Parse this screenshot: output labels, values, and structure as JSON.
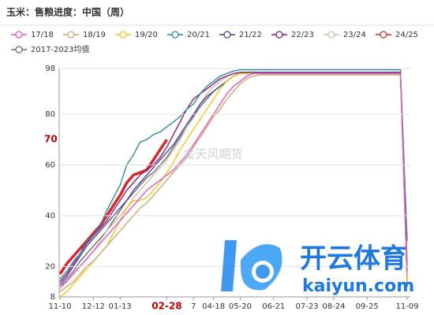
{
  "chart_data": {
    "type": "line",
    "title": "玉米：售粮进度：中国（周）",
    "categories": [
      "11-10",
      null,
      null,
      null,
      null,
      "12-12",
      null,
      null,
      null,
      "01-13",
      null,
      null,
      null,
      null,
      null,
      null,
      "02-28",
      null,
      null,
      null,
      "7",
      null,
      null,
      "04-18",
      null,
      null,
      null,
      "05-20",
      null,
      null,
      null,
      null,
      "06-21",
      null,
      null,
      null,
      null,
      "07-23",
      null,
      null,
      null,
      "08-24",
      null,
      null,
      null,
      null,
      "09-25",
      null,
      null,
      null,
      null,
      null,
      "11-09"
    ],
    "ylim": [
      8,
      98
    ],
    "yticks": [
      8,
      20,
      40,
      60,
      80,
      98
    ],
    "grid": true,
    "annotation": {
      "value": 70,
      "x_index": 16,
      "color": "#c00000"
    },
    "watermarks": {
      "text": "金天风期货",
      "logo_text": "开云体育",
      "logo_url": "kaiyun.com"
    },
    "series": [
      {
        "name": "17/18",
        "color": "#e754c4",
        "values": [
          12,
          14,
          17,
          20,
          23,
          26,
          29,
          32,
          35,
          38,
          41,
          44,
          47,
          50,
          52,
          54,
          56,
          58,
          61,
          64,
          68,
          72,
          76,
          80,
          84,
          88,
          91,
          93,
          95,
          96,
          96,
          96,
          96,
          96,
          96,
          96,
          96,
          96,
          96,
          96,
          96,
          96,
          96,
          96,
          96,
          96,
          96,
          96,
          96,
          96,
          96,
          96,
          18
        ]
      },
      {
        "name": "18/19",
        "color": "#c8a96e",
        "values": [
          10,
          12,
          14,
          17,
          20,
          22,
          25,
          28,
          31,
          34,
          37,
          40,
          43,
          45,
          48,
          51,
          54,
          57,
          60,
          63,
          67,
          71,
          75,
          79,
          82,
          86,
          89,
          92,
          94,
          95,
          95.5,
          95.5,
          95.5,
          95.5,
          95.5,
          95.5,
          95.5,
          95.5,
          95.5,
          95.5,
          95.5,
          95.5,
          95.5,
          95.5,
          95.5,
          95.5,
          95.5,
          95.5,
          95.5,
          95.5,
          95.5,
          95.5,
          16
        ]
      },
      {
        "name": "19/20",
        "color": "#f5c518",
        "values": [
          8,
          10,
          13,
          16,
          19,
          22,
          25,
          28,
          33,
          38,
          43,
          46,
          46,
          47,
          50,
          53,
          57,
          61,
          66,
          70,
          74,
          78,
          82,
          86,
          90,
          93,
          95,
          96,
          96,
          96,
          96,
          96,
          96,
          96,
          96,
          96,
          96,
          96,
          96,
          96,
          96,
          96,
          96,
          96,
          96,
          96,
          96,
          96,
          96,
          96,
          96,
          96,
          14
        ]
      },
      {
        "name": "20/21",
        "color": "#2e8b98",
        "values": [
          15,
          18,
          22,
          25,
          30,
          32,
          36,
          42,
          47,
          52,
          60,
          64,
          69,
          70,
          72,
          73,
          75,
          77,
          79,
          82,
          84,
          88,
          91,
          93,
          95,
          96,
          97,
          97.5,
          97.5,
          97.5,
          97.5,
          97.5,
          97.5,
          97.5,
          97.5,
          97.5,
          97.5,
          97.5,
          97.5,
          97.5,
          97.5,
          97.5,
          97.5,
          97.5,
          97.5,
          97.5,
          97.5,
          97.5,
          97.5,
          97.5,
          97.5,
          97.5,
          30
        ]
      },
      {
        "name": "21/22",
        "color": "#4b3f9e",
        "values": [
          13,
          16,
          20,
          24,
          28,
          31,
          34,
          37,
          40,
          43,
          46,
          50,
          53,
          56,
          59,
          62,
          65,
          68,
          72,
          76,
          80,
          84,
          87,
          89,
          91,
          93,
          95,
          96,
          96.5,
          96.5,
          96.5,
          96.5,
          96.5,
          96.5,
          96.5,
          96.5,
          96.5,
          96.5,
          96.5,
          96.5,
          96.5,
          96.5,
          96.5,
          96.5,
          96.5,
          96.5,
          96.5,
          96.5,
          96.5,
          96.5,
          96.5,
          96.5,
          12
        ]
      },
      {
        "name": "22/23",
        "color": "#8b1a7a",
        "values": [
          14,
          17,
          21,
          25,
          29,
          32,
          35,
          38,
          42,
          46,
          50,
          53,
          56,
          58,
          60,
          63,
          67,
          72,
          77,
          82,
          86,
          88,
          90,
          92,
          94,
          95,
          96,
          96.5,
          96.5,
          96.5,
          96.5,
          96.5,
          96.5,
          96.5,
          96.5,
          96.5,
          96.5,
          96.5,
          96.5,
          96.5,
          96.5,
          96.5,
          96.5,
          96.5,
          96.5,
          96.5,
          96.5,
          96.5,
          96.5,
          96.5,
          96.5,
          96.5,
          15
        ]
      },
      {
        "name": "23/24",
        "color": "#c9c2a3",
        "values": [
          11,
          14,
          17,
          20,
          23,
          26,
          30,
          34,
          37,
          40,
          43,
          47,
          50,
          53,
          56,
          59,
          62,
          66,
          70,
          75,
          80,
          84,
          88,
          91,
          93,
          95,
          96,
          96,
          96,
          96,
          96,
          96,
          96,
          96,
          96,
          96,
          96,
          96,
          96,
          96,
          96,
          96,
          96,
          96,
          96,
          96,
          96,
          96,
          96,
          96,
          96,
          96,
          20
        ]
      },
      {
        "name": "24/25",
        "color": "#d9262c",
        "values": [
          17,
          21,
          24,
          27,
          30,
          33,
          36,
          40,
          44,
          48,
          53,
          56,
          57,
          58,
          62,
          66,
          70,
          null,
          null,
          null,
          null,
          null,
          null,
          null,
          null,
          null,
          null,
          null,
          null,
          null,
          null,
          null,
          null,
          null,
          null,
          null,
          null,
          null,
          null,
          null,
          null,
          null,
          null,
          null,
          null,
          null,
          null,
          null,
          null,
          null,
          null,
          null,
          null
        ]
      },
      {
        "name": "2017-2023均值",
        "color": "#6b6b6b",
        "values": [
          12,
          15,
          18,
          22,
          25,
          28,
          31,
          34,
          38,
          42,
          46,
          49,
          52,
          55,
          57,
          60,
          63,
          67,
          71,
          75,
          79,
          83,
          86,
          89,
          91,
          93,
          95,
          96,
          96,
          96,
          96,
          96,
          96,
          96,
          96,
          96,
          96,
          96,
          96,
          96,
          96,
          96,
          96,
          96,
          96,
          96,
          96,
          96,
          96,
          96,
          96,
          96,
          22
        ]
      }
    ]
  }
}
